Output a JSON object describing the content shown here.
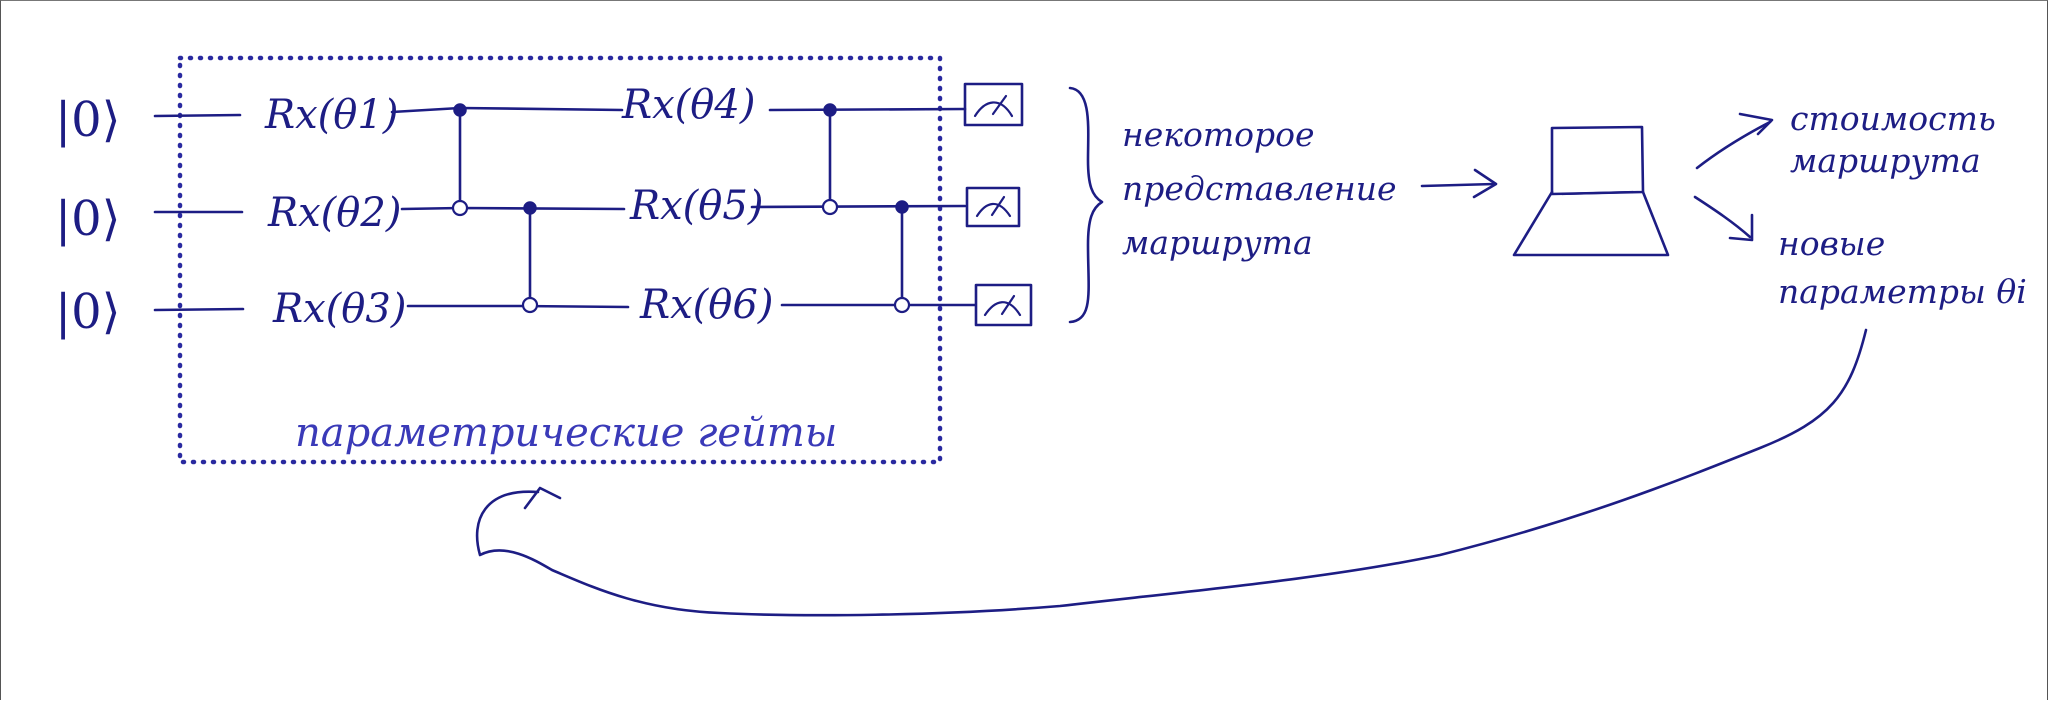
{
  "circuit": {
    "qubits": [
      {
        "ket": "|0⟩",
        "gates": [
          "Rx(θ1)",
          "Rx(θ4)"
        ]
      },
      {
        "ket": "|0⟩",
        "gates": [
          "Rx(θ2)",
          "Rx(θ5)"
        ]
      },
      {
        "ket": "|0⟩",
        "gates": [
          "Rx(θ3)",
          "Rx(θ6)"
        ]
      }
    ],
    "gates": {
      "g1": "Rx(θ1)",
      "g2": "Rx(θ2)",
      "g3": "Rx(θ3)",
      "g4": "Rx(θ4)",
      "g5": "Rx(θ5)",
      "g6": "Rx(θ6)"
    },
    "kets": [
      "|0⟩",
      "|0⟩",
      "|0⟩"
    ],
    "box_label": "параметрические гейты"
  },
  "output": {
    "representation_label": [
      "некоторое",
      "представление",
      "маршрута"
    ]
  },
  "classical": {
    "results": {
      "cost": [
        "стоимость",
        "маршрута"
      ],
      "new_params": [
        "новые",
        "параметры θi"
      ]
    }
  },
  "colors": {
    "ink": "#1d1d84",
    "dotted_box": "#2a2aa0"
  }
}
